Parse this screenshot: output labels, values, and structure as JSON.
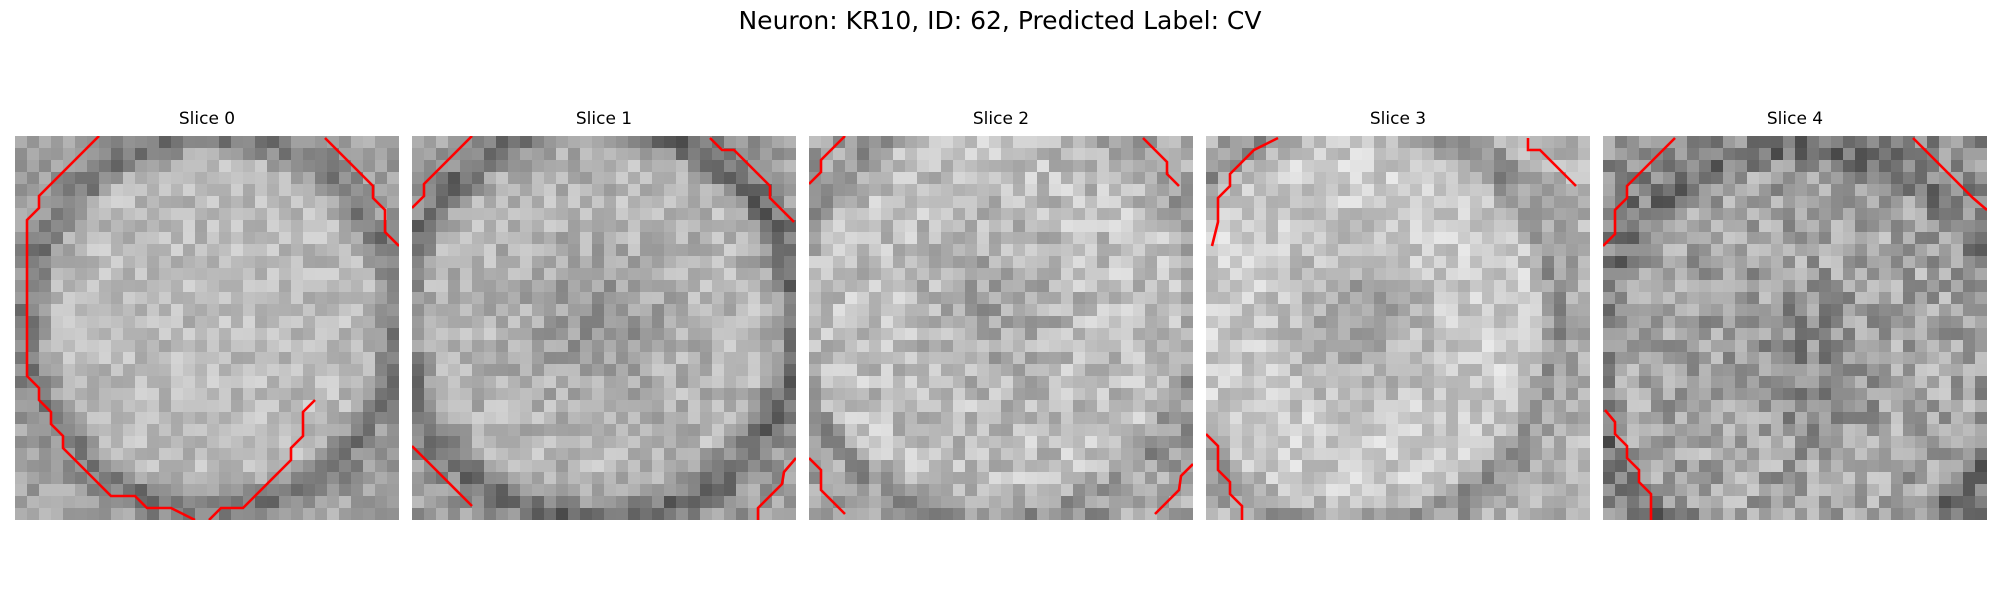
{
  "figure": {
    "title": "Neuron: KR10, ID: 62, Predicted Label: CV"
  },
  "panels": [
    {
      "title": "Slice 0"
    },
    {
      "title": "Slice 1"
    },
    {
      "title": "Slice 2"
    },
    {
      "title": "Slice 3"
    },
    {
      "title": "Slice 4"
    }
  ],
  "colors": {
    "contour": "#ff0000",
    "colormap": "gray"
  }
}
